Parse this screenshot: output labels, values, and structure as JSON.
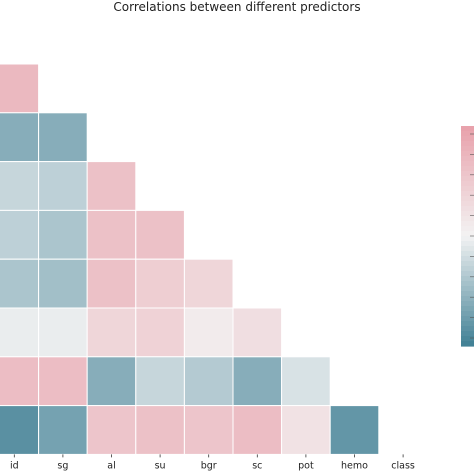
{
  "chart_data": {
    "type": "heatmap",
    "title": "Correlations between different predictors",
    "x_labels": [
      "id",
      "sg",
      "al",
      "su",
      "bgr",
      "sc",
      "pot",
      "hemo",
      "class"
    ],
    "y_labels": [
      "",
      "",
      "",
      "",
      "",
      "",
      "",
      ""
    ],
    "colormap": {
      "negative": "#3f7f94",
      "neutral": "#f3f3f3",
      "positive": "#e8a0aa"
    },
    "value_range": [
      -1,
      1
    ],
    "rows": [
      {
        "values": [
          0.7
        ]
      },
      {
        "values": [
          -0.6,
          -0.6
        ]
      },
      {
        "values": [
          -0.25,
          -0.3,
          0.6
        ]
      },
      {
        "values": [
          -0.3,
          -0.4,
          0.6,
          0.6
        ]
      },
      {
        "values": [
          -0.4,
          -0.45,
          0.6,
          0.45,
          0.35
        ]
      },
      {
        "values": [
          -0.05,
          -0.05,
          0.35,
          0.4,
          0.1,
          0.25
        ]
      },
      {
        "values": [
          0.65,
          0.65,
          -0.6,
          -0.25,
          -0.35,
          -0.6,
          -0.15
        ]
      },
      {
        "values": [
          -0.85,
          -0.7,
          0.55,
          0.6,
          0.55,
          0.65,
          0.2,
          -0.8
        ]
      }
    ],
    "colorbar": {
      "placement": "right"
    },
    "grid": false
  }
}
